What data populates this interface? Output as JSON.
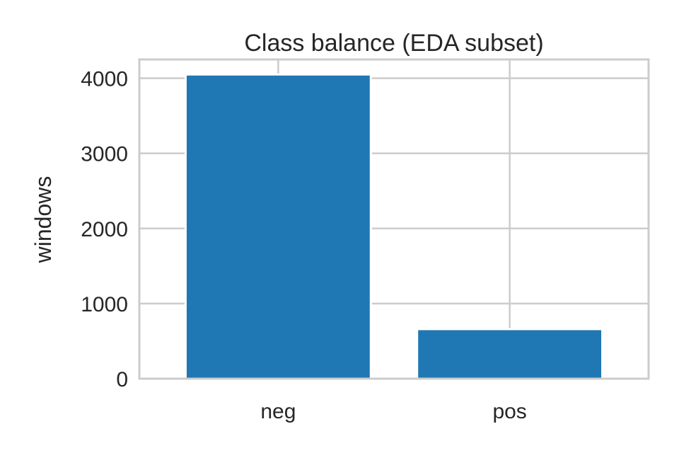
{
  "chart_data": {
    "type": "bar",
    "title": "Class balance (EDA subset)",
    "xlabel": "",
    "ylabel": "windows",
    "categories": [
      "neg",
      "pos"
    ],
    "values": [
      4050,
      660
    ],
    "ylim": [
      0,
      4250
    ],
    "yticks": [
      0,
      1000,
      2000,
      3000,
      4000
    ],
    "bar_color": "#1f77b4",
    "grid": true,
    "grid_color": "#cccccc",
    "legend": "none"
  }
}
